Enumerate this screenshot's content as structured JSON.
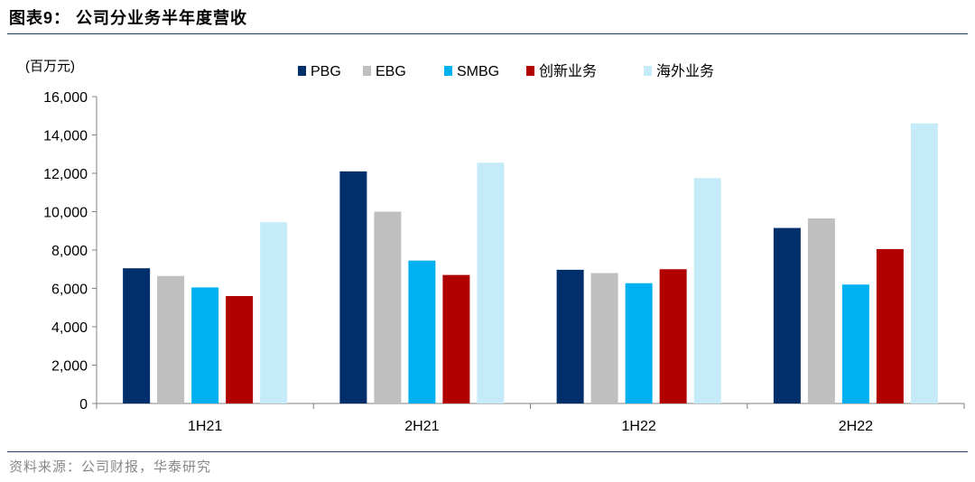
{
  "header": {
    "title": "图表9：  公司分业务半年度营收"
  },
  "footer": {
    "source": "资料来源：公司财报，华泰研究"
  },
  "chart_data": {
    "type": "bar",
    "unit_label": "(百万元)",
    "categories": [
      "1H21",
      "2H21",
      "1H22",
      "2H22"
    ],
    "ylim": [
      0,
      16000
    ],
    "yticks": [
      0,
      2000,
      4000,
      6000,
      8000,
      10000,
      12000,
      14000,
      16000
    ],
    "ytick_labels": [
      "0",
      "2,000",
      "4,000",
      "6,000",
      "8,000",
      "10,000",
      "12,000",
      "14,000",
      "16,000"
    ],
    "grid": false,
    "legend_position": "top",
    "series": [
      {
        "name": "PBG",
        "color": "#002f6c",
        "values": [
          7050,
          12100,
          6970,
          9150
        ]
      },
      {
        "name": "EBG",
        "color": "#bfbfbf",
        "values": [
          6650,
          10000,
          6800,
          9650
        ]
      },
      {
        "name": "SMBG",
        "color": "#00b0f0",
        "values": [
          6050,
          7450,
          6270,
          6200
        ]
      },
      {
        "name": "创新业务",
        "color": "#b00000",
        "values": [
          5600,
          6700,
          7000,
          8050
        ]
      },
      {
        "name": "海外业务",
        "color": "#c5ebf8",
        "values": [
          9450,
          12550,
          11750,
          14600
        ]
      }
    ]
  }
}
